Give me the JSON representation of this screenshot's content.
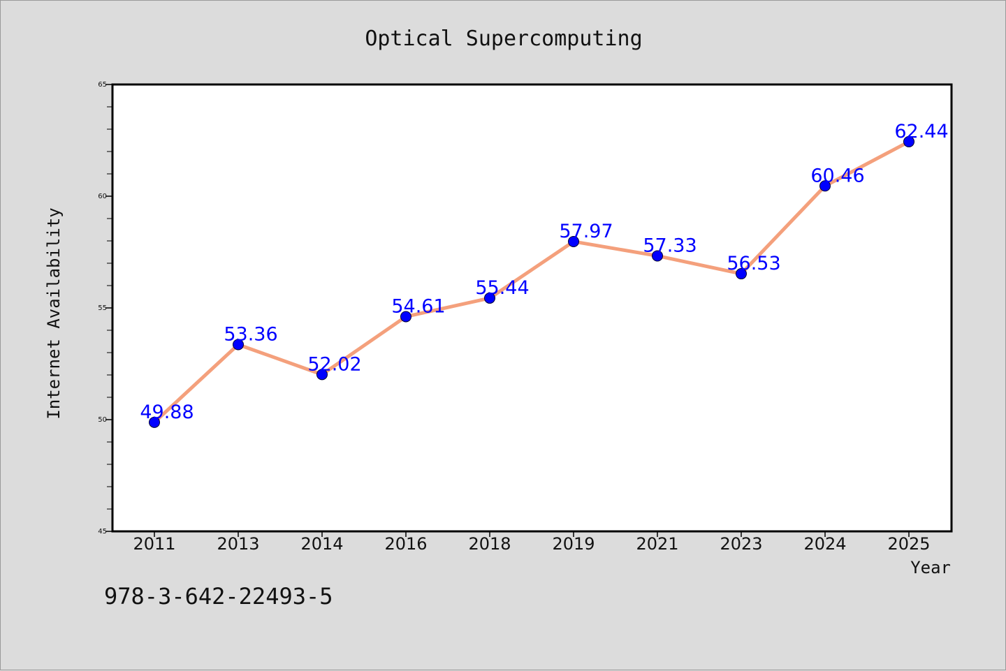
{
  "chart_data": {
    "type": "line",
    "title": "Optical Supercomputing",
    "xlabel": "Year",
    "ylabel": "Internet Availability",
    "categories": [
      "2011",
      "2013",
      "2014",
      "2016",
      "2018",
      "2019",
      "2021",
      "2023",
      "2024",
      "2025"
    ],
    "series": [
      {
        "values": [
          49.88,
          53.36,
          52.02,
          54.61,
          55.44,
          57.97,
          57.33,
          56.53,
          60.46,
          62.44
        ],
        "line_color": "#f4a07c",
        "marker_color": "#0000ff"
      }
    ],
    "data_labels": [
      "49.88",
      "53.36",
      "52.02",
      "54.61",
      "55.44",
      "57.97",
      "57.33",
      "56.53",
      "60.46",
      "62.44"
    ],
    "ylim": [
      45,
      65
    ],
    "y_ticks": [
      45,
      50,
      55,
      60,
      65
    ],
    "grid": false,
    "legend": "none",
    "annotation": "978-3-642-22493-5",
    "label_color": "#0000ff"
  }
}
